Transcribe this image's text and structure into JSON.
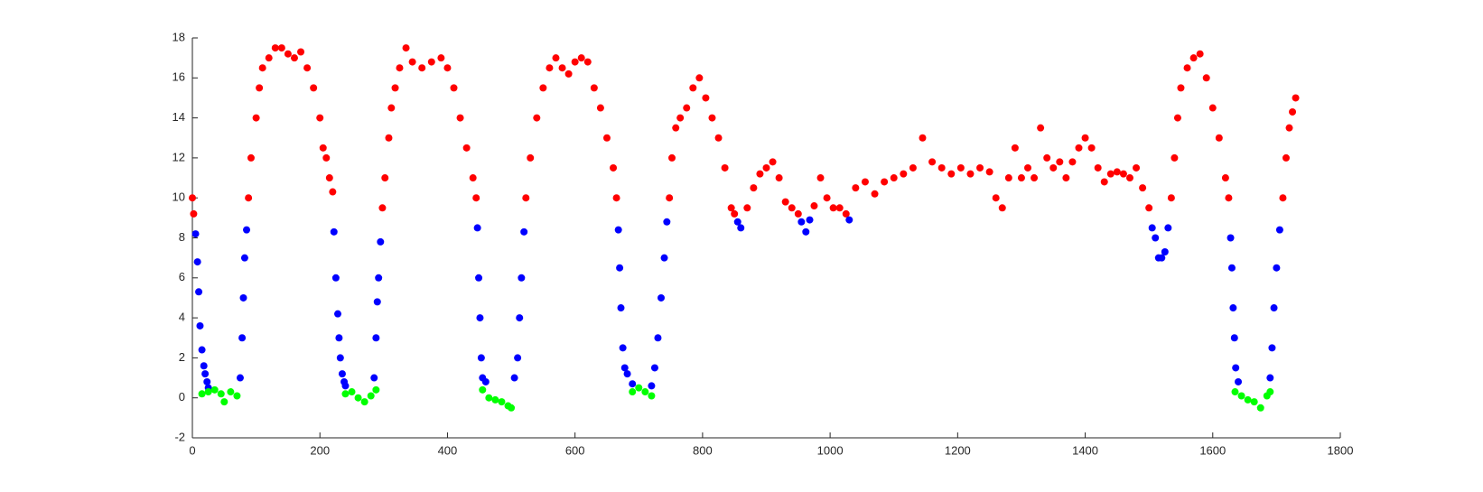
{
  "chart_data": {
    "type": "scatter",
    "xlim": [
      0,
      1800
    ],
    "xticks": [
      0,
      200,
      400,
      600,
      800,
      1000,
      1200,
      1400,
      1600,
      1800
    ],
    "ylim": [
      -2,
      18
    ],
    "yticks": [
      -2,
      0,
      2,
      4,
      6,
      8,
      10,
      12,
      14,
      16,
      18
    ],
    "grid": false,
    "series": [
      {
        "color": "#ff0000",
        "x": [
          0,
          2,
          88,
          92,
          100,
          105,
          110,
          120,
          130,
          140,
          150,
          160,
          170,
          180,
          190,
          200,
          205,
          210,
          215,
          220,
          298,
          302,
          308,
          312,
          318,
          325,
          335,
          345,
          360,
          375,
          390,
          400,
          410,
          420,
          430,
          440,
          445,
          523,
          530,
          540,
          550,
          560,
          570,
          580,
          590,
          600,
          610,
          620,
          630,
          640,
          650,
          660,
          665,
          748,
          752,
          758,
          765,
          775,
          785,
          795,
          805,
          815,
          825,
          835,
          845,
          850,
          870,
          880,
          890,
          900,
          910,
          920,
          930,
          940,
          950,
          975,
          985,
          995,
          1005,
          1015,
          1025,
          1040,
          1055,
          1070,
          1085,
          1100,
          1115,
          1130,
          1145,
          1160,
          1175,
          1190,
          1205,
          1220,
          1235,
          1250,
          1260,
          1270,
          1280,
          1290,
          1300,
          1310,
          1320,
          1330,
          1340,
          1350,
          1360,
          1370,
          1380,
          1390,
          1400,
          1410,
          1420,
          1430,
          1440,
          1450,
          1460,
          1470,
          1480,
          1490,
          1500,
          1535,
          1540,
          1545,
          1550,
          1560,
          1570,
          1580,
          1590,
          1600,
          1610,
          1620,
          1625,
          1710,
          1715,
          1720,
          1725,
          1730
        ],
        "values": [
          10,
          9.2,
          10,
          12,
          14,
          15.5,
          16.5,
          17,
          17.5,
          17.5,
          17.2,
          17,
          17.3,
          16.5,
          15.5,
          14,
          12.5,
          12,
          11,
          10.3,
          9.5,
          11,
          13,
          14.5,
          15.5,
          16.5,
          17.5,
          16.8,
          16.5,
          16.8,
          17,
          16.5,
          15.5,
          14,
          12.5,
          11,
          10,
          10,
          12,
          14,
          15.5,
          16.5,
          17,
          16.5,
          16.2,
          16.8,
          17,
          16.8,
          15.5,
          14.5,
          13,
          11.5,
          10,
          10,
          12,
          13.5,
          14,
          14.5,
          15.5,
          16,
          15,
          14,
          13,
          11.5,
          9.5,
          9.2,
          9.5,
          10.5,
          11.2,
          11.5,
          11.8,
          11,
          9.8,
          9.5,
          9.2,
          9.6,
          11,
          10,
          9.5,
          9.5,
          9.2,
          10.5,
          10.8,
          10.2,
          10.8,
          11,
          11.2,
          11.5,
          13,
          11.8,
          11.5,
          11.2,
          11.5,
          11.2,
          11.5,
          11.3,
          10,
          9.5,
          11,
          12.5,
          11,
          11.5,
          11,
          13.5,
          12,
          11.5,
          11.8,
          11,
          11.8,
          12.5,
          13,
          12.5,
          11.5,
          10.8,
          11.2,
          11.3,
          11.2,
          11,
          11.5,
          10.5,
          9.5,
          10,
          12,
          14,
          15.5,
          16.5,
          17,
          17.2,
          16,
          14.5,
          13,
          11,
          10,
          10,
          12,
          13.5,
          14.3,
          15
        ]
      },
      {
        "color": "#0000ff",
        "x": [
          5,
          8,
          10,
          12,
          15,
          18,
          20,
          23,
          25,
          75,
          78,
          80,
          82,
          85,
          222,
          225,
          228,
          230,
          232,
          235,
          238,
          240,
          285,
          288,
          290,
          292,
          295,
          447,
          449,
          451,
          453,
          455,
          460,
          505,
          510,
          513,
          516,
          520,
          668,
          670,
          672,
          675,
          678,
          682,
          690,
          720,
          725,
          730,
          735,
          740,
          744,
          855,
          860,
          955,
          962,
          968,
          1030,
          1505,
          1510,
          1515,
          1520,
          1525,
          1530,
          1628,
          1630,
          1632,
          1634,
          1636,
          1640,
          1690,
          1693,
          1696,
          1700,
          1705
        ],
        "values": [
          8.2,
          6.8,
          5.3,
          3.6,
          2.4,
          1.6,
          1.2,
          0.8,
          0.5,
          1,
          3,
          5,
          7,
          8.4,
          8.3,
          6,
          4.2,
          3,
          2,
          1.2,
          0.8,
          0.6,
          1,
          3,
          4.8,
          6,
          7.8,
          8.5,
          6,
          4,
          2,
          1,
          0.8,
          1,
          2,
          4,
          6,
          8.3,
          8.4,
          6.5,
          4.5,
          2.5,
          1.5,
          1.2,
          0.7,
          0.6,
          1.5,
          3,
          5,
          7,
          8.8,
          8.8,
          8.5,
          8.8,
          8.3,
          8.9,
          8.9,
          8.5,
          8,
          7,
          7,
          7.3,
          8.5,
          8,
          6.5,
          4.5,
          3,
          1.5,
          0.8,
          1,
          2.5,
          4.5,
          6.5,
          8.4
        ]
      },
      {
        "color": "#00ff00",
        "x": [
          15,
          25,
          35,
          45,
          50,
          60,
          70,
          240,
          250,
          260,
          270,
          280,
          288,
          455,
          465,
          475,
          485,
          495,
          500,
          690,
          700,
          710,
          720,
          1635,
          1645,
          1655,
          1665,
          1675,
          1685,
          1690
        ],
        "values": [
          0.2,
          0.3,
          0.4,
          0.2,
          -0.2,
          0.3,
          0.1,
          0.2,
          0.3,
          0,
          -0.2,
          0.1,
          0.4,
          0.4,
          0,
          -0.1,
          -0.2,
          -0.4,
          -0.5,
          0.3,
          0.5,
          0.3,
          0.1,
          0.3,
          0.1,
          -0.1,
          -0.2,
          -0.5,
          0.1,
          0.3
        ]
      }
    ]
  }
}
